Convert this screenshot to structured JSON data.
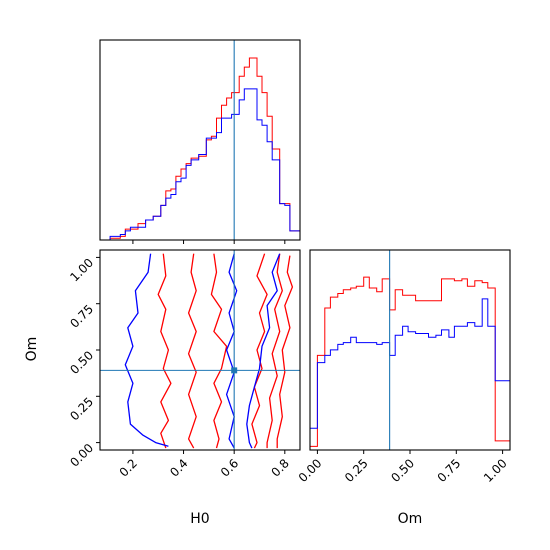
{
  "chart_data": {
    "type": "corner",
    "parameters": [
      "H0",
      "Om"
    ],
    "colors": {
      "series_a": "#ff0000",
      "series_b": "#0000ff",
      "truth": "#1f77b4"
    },
    "truth": {
      "H0": 0.6,
      "Om": 0.39
    },
    "axes": {
      "H0": {
        "range": [
          0.07,
          0.86
        ],
        "ticks": [
          "0.2",
          "0.4",
          "0.6",
          "0.8"
        ],
        "tick_values": [
          0.2,
          0.4,
          0.6,
          0.8
        ],
        "label": "H0"
      },
      "Om": {
        "range": [
          -0.04,
          1.04
        ],
        "ticks": [
          "0.00",
          "0.25",
          "0.50",
          "0.75",
          "1.00"
        ],
        "tick_values": [
          0,
          0.25,
          0.5,
          0.75,
          1.0
        ],
        "label": "Om"
      }
    },
    "hist_H0": {
      "bin_edges": [
        0.07,
        0.11,
        0.15,
        0.17,
        0.19,
        0.22,
        0.25,
        0.28,
        0.31,
        0.33,
        0.35,
        0.37,
        0.39,
        0.41,
        0.43,
        0.46,
        0.49,
        0.51,
        0.53,
        0.55,
        0.57,
        0.59,
        0.62,
        0.64,
        0.66,
        0.69,
        0.71,
        0.73,
        0.75,
        0.78,
        0.8,
        0.82,
        0.86
      ],
      "series": [
        {
          "name": "red",
          "values": [
            0,
            0.01,
            0.02,
            0.06,
            0.06,
            0.09,
            0.11,
            0.13,
            0.19,
            0.27,
            0.28,
            0.35,
            0.39,
            0.42,
            0.45,
            0.46,
            0.55,
            0.57,
            0.67,
            0.74,
            0.78,
            0.81,
            0.9,
            0.95,
            1.0,
            0.9,
            0.81,
            0.68,
            0.5,
            0.2,
            0.2,
            0.05
          ]
        },
        {
          "name": "blue",
          "values": [
            0,
            0.02,
            0.03,
            0.05,
            0.07,
            0.07,
            0.11,
            0.13,
            0.19,
            0.23,
            0.25,
            0.32,
            0.34,
            0.41,
            0.44,
            0.47,
            0.56,
            0.56,
            0.59,
            0.67,
            0.67,
            0.69,
            0.77,
            0.83,
            0.83,
            0.66,
            0.63,
            0.54,
            0.44,
            0.2,
            0.19,
            0.05
          ]
        }
      ]
    },
    "hist_Om": {
      "bin_edges": [
        -0.04,
        0.0,
        0.04,
        0.07,
        0.11,
        0.14,
        0.18,
        0.21,
        0.25,
        0.28,
        0.32,
        0.35,
        0.39,
        0.42,
        0.46,
        0.49,
        0.53,
        0.56,
        0.6,
        0.64,
        0.67,
        0.71,
        0.74,
        0.78,
        0.81,
        0.85,
        0.89,
        0.92,
        0.96,
        1.0,
        1.04
      ],
      "series": [
        {
          "name": "red",
          "values": [
            0.02,
            0.52,
            0.78,
            0.84,
            0.86,
            0.88,
            0.89,
            0.9,
            0.95,
            0.89,
            0.87,
            0.94,
            0.77,
            0.88,
            0.85,
            0.85,
            0.82,
            0.82,
            0.82,
            0.82,
            0.94,
            0.94,
            0.93,
            0.94,
            0.9,
            0.93,
            0.92,
            0.89,
            0.05,
            0.05
          ]
        },
        {
          "name": "blue",
          "values": [
            0.12,
            0.48,
            0.52,
            0.55,
            0.58,
            0.59,
            0.62,
            0.59,
            0.59,
            0.59,
            0.58,
            0.59,
            0.52,
            0.63,
            0.68,
            0.65,
            0.64,
            0.64,
            0.62,
            0.63,
            0.66,
            0.62,
            0.68,
            0.68,
            0.7,
            0.68,
            0.83,
            0.68,
            0.38,
            0.38
          ]
        }
      ]
    },
    "contours": [
      {
        "name": "red",
        "color": "#ff0000",
        "lines": [
          [
            [
              0.32,
              1.02
            ],
            [
              0.33,
              0.9
            ],
            [
              0.3,
              0.8
            ],
            [
              0.33,
              0.72
            ],
            [
              0.31,
              0.6
            ],
            [
              0.34,
              0.5
            ],
            [
              0.32,
              0.4
            ],
            [
              0.35,
              0.32
            ],
            [
              0.31,
              0.22
            ],
            [
              0.34,
              0.12
            ],
            [
              0.31,
              0.05
            ],
            [
              0.33,
              -0.03
            ]
          ],
          [
            [
              0.44,
              1.02
            ],
            [
              0.43,
              0.92
            ],
            [
              0.45,
              0.82
            ],
            [
              0.42,
              0.7
            ],
            [
              0.45,
              0.6
            ],
            [
              0.42,
              0.48
            ],
            [
              0.45,
              0.38
            ],
            [
              0.42,
              0.26
            ],
            [
              0.45,
              0.14
            ],
            [
              0.42,
              0.02
            ],
            [
              0.44,
              -0.03
            ]
          ],
          [
            [
              0.52,
              1.02
            ],
            [
              0.53,
              0.92
            ],
            [
              0.51,
              0.8
            ],
            [
              0.55,
              0.72
            ],
            [
              0.52,
              0.6
            ],
            [
              0.57,
              0.52
            ],
            [
              0.55,
              0.4
            ],
            [
              0.52,
              0.32
            ],
            [
              0.55,
              0.22
            ],
            [
              0.52,
              0.12
            ],
            [
              0.54,
              0.02
            ],
            [
              0.53,
              -0.03
            ]
          ],
          [
            [
              0.72,
              1.02
            ],
            [
              0.69,
              0.9
            ],
            [
              0.73,
              0.8
            ],
            [
              0.7,
              0.7
            ],
            [
              0.72,
              0.6
            ],
            [
              0.69,
              0.5
            ],
            [
              0.71,
              0.4
            ],
            [
              0.68,
              0.3
            ],
            [
              0.7,
              0.2
            ],
            [
              0.67,
              0.1
            ],
            [
              0.69,
              0.0
            ],
            [
              0.68,
              -0.03
            ]
          ],
          [
            [
              0.78,
              1.02
            ],
            [
              0.77,
              0.92
            ],
            [
              0.79,
              0.82
            ],
            [
              0.76,
              0.72
            ],
            [
              0.78,
              0.6
            ],
            [
              0.75,
              0.48
            ],
            [
              0.77,
              0.36
            ],
            [
              0.74,
              0.24
            ],
            [
              0.75,
              0.12
            ],
            [
              0.73,
              0.0
            ],
            [
              0.73,
              -0.03
            ]
          ],
          [
            [
              0.82,
              1.01
            ],
            [
              0.81,
              0.92
            ],
            [
              0.83,
              0.84
            ],
            [
              0.8,
              0.74
            ],
            [
              0.82,
              0.62
            ],
            [
              0.79,
              0.5
            ],
            [
              0.8,
              0.38
            ],
            [
              0.78,
              0.26
            ],
            [
              0.79,
              0.14
            ],
            [
              0.77,
              0.02
            ],
            [
              0.77,
              -0.03
            ]
          ]
        ]
      },
      {
        "name": "blue",
        "color": "#0000ff",
        "lines": [
          [
            [
              0.27,
              1.02
            ],
            [
              0.26,
              0.92
            ],
            [
              0.21,
              0.82
            ],
            [
              0.22,
              0.7
            ],
            [
              0.18,
              0.62
            ],
            [
              0.2,
              0.52
            ],
            [
              0.17,
              0.42
            ],
            [
              0.2,
              0.32
            ],
            [
              0.18,
              0.22
            ],
            [
              0.19,
              0.1
            ],
            [
              0.24,
              0.04
            ],
            [
              0.29,
              0.0
            ],
            [
              0.34,
              -0.02
            ]
          ],
          [
            [
              0.6,
              1.02
            ],
            [
              0.58,
              0.92
            ],
            [
              0.61,
              0.82
            ],
            [
              0.58,
              0.7
            ],
            [
              0.6,
              0.6
            ],
            [
              0.57,
              0.5
            ],
            [
              0.6,
              0.38
            ],
            [
              0.57,
              0.26
            ],
            [
              0.6,
              0.14
            ],
            [
              0.58,
              0.02
            ],
            [
              0.6,
              -0.03
            ]
          ],
          [
            [
              0.78,
              1.02
            ],
            [
              0.75,
              0.92
            ],
            [
              0.77,
              0.82
            ],
            [
              0.73,
              0.74
            ],
            [
              0.74,
              0.62
            ],
            [
              0.71,
              0.52
            ],
            [
              0.7,
              0.4
            ],
            [
              0.68,
              0.3
            ],
            [
              0.66,
              0.2
            ],
            [
              0.65,
              0.1
            ],
            [
              0.66,
              0.0
            ],
            [
              0.67,
              -0.03
            ]
          ]
        ]
      }
    ]
  }
}
